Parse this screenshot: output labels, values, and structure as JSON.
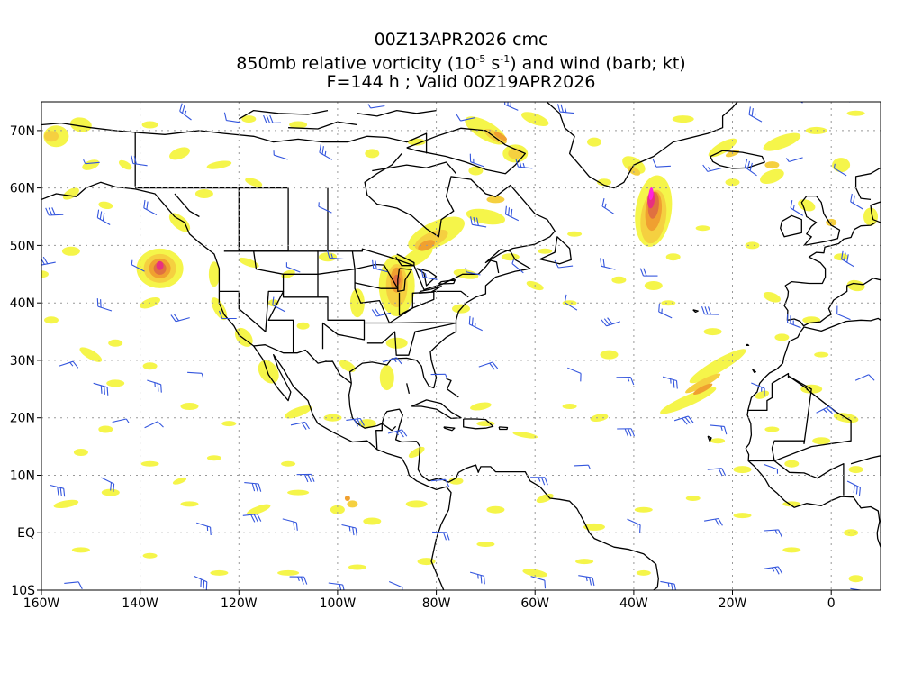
{
  "title": {
    "line1": "00Z13APR2026 cmc",
    "line2_prefix": "850mb relative vorticity (10",
    "line2_exp1": "-5",
    "line2_mid": " s",
    "line2_exp2": "-1",
    "line2_suffix": ") and wind (barb; kt)",
    "line3": "F=144 h ; Valid 00Z19APR2026"
  },
  "map": {
    "lon_range": [
      -160,
      10
    ],
    "lat_range": [
      -10,
      75
    ],
    "lon_ticks": [
      {
        "value": -160,
        "label": "160W"
      },
      {
        "value": -140,
        "label": "140W"
      },
      {
        "value": -120,
        "label": "120W"
      },
      {
        "value": -100,
        "label": "100W"
      },
      {
        "value": -80,
        "label": "80W"
      },
      {
        "value": -60,
        "label": "60W"
      },
      {
        "value": -40,
        "label": "40W"
      },
      {
        "value": -20,
        "label": "20W"
      },
      {
        "value": 0,
        "label": "0"
      }
    ],
    "lat_ticks": [
      {
        "value": 70,
        "label": "70N"
      },
      {
        "value": 60,
        "label": "60N"
      },
      {
        "value": 50,
        "label": "50N"
      },
      {
        "value": 40,
        "label": "40N"
      },
      {
        "value": 30,
        "label": "30N"
      },
      {
        "value": 20,
        "label": "20N"
      },
      {
        "value": 10,
        "label": "10N"
      },
      {
        "value": 0,
        "label": "EQ"
      },
      {
        "value": -10,
        "label": "10S"
      }
    ],
    "colors": {
      "coast": "#000000",
      "grid": "#999999",
      "barb": "#3355dd",
      "vort_low": "#f5f54a",
      "vort_mid": "#f5d040",
      "vort_high": "#f0a030",
      "vort_max": "#e07040",
      "vort_peak": "#e83080",
      "vort_extreme": "#ff22dd"
    }
  }
}
